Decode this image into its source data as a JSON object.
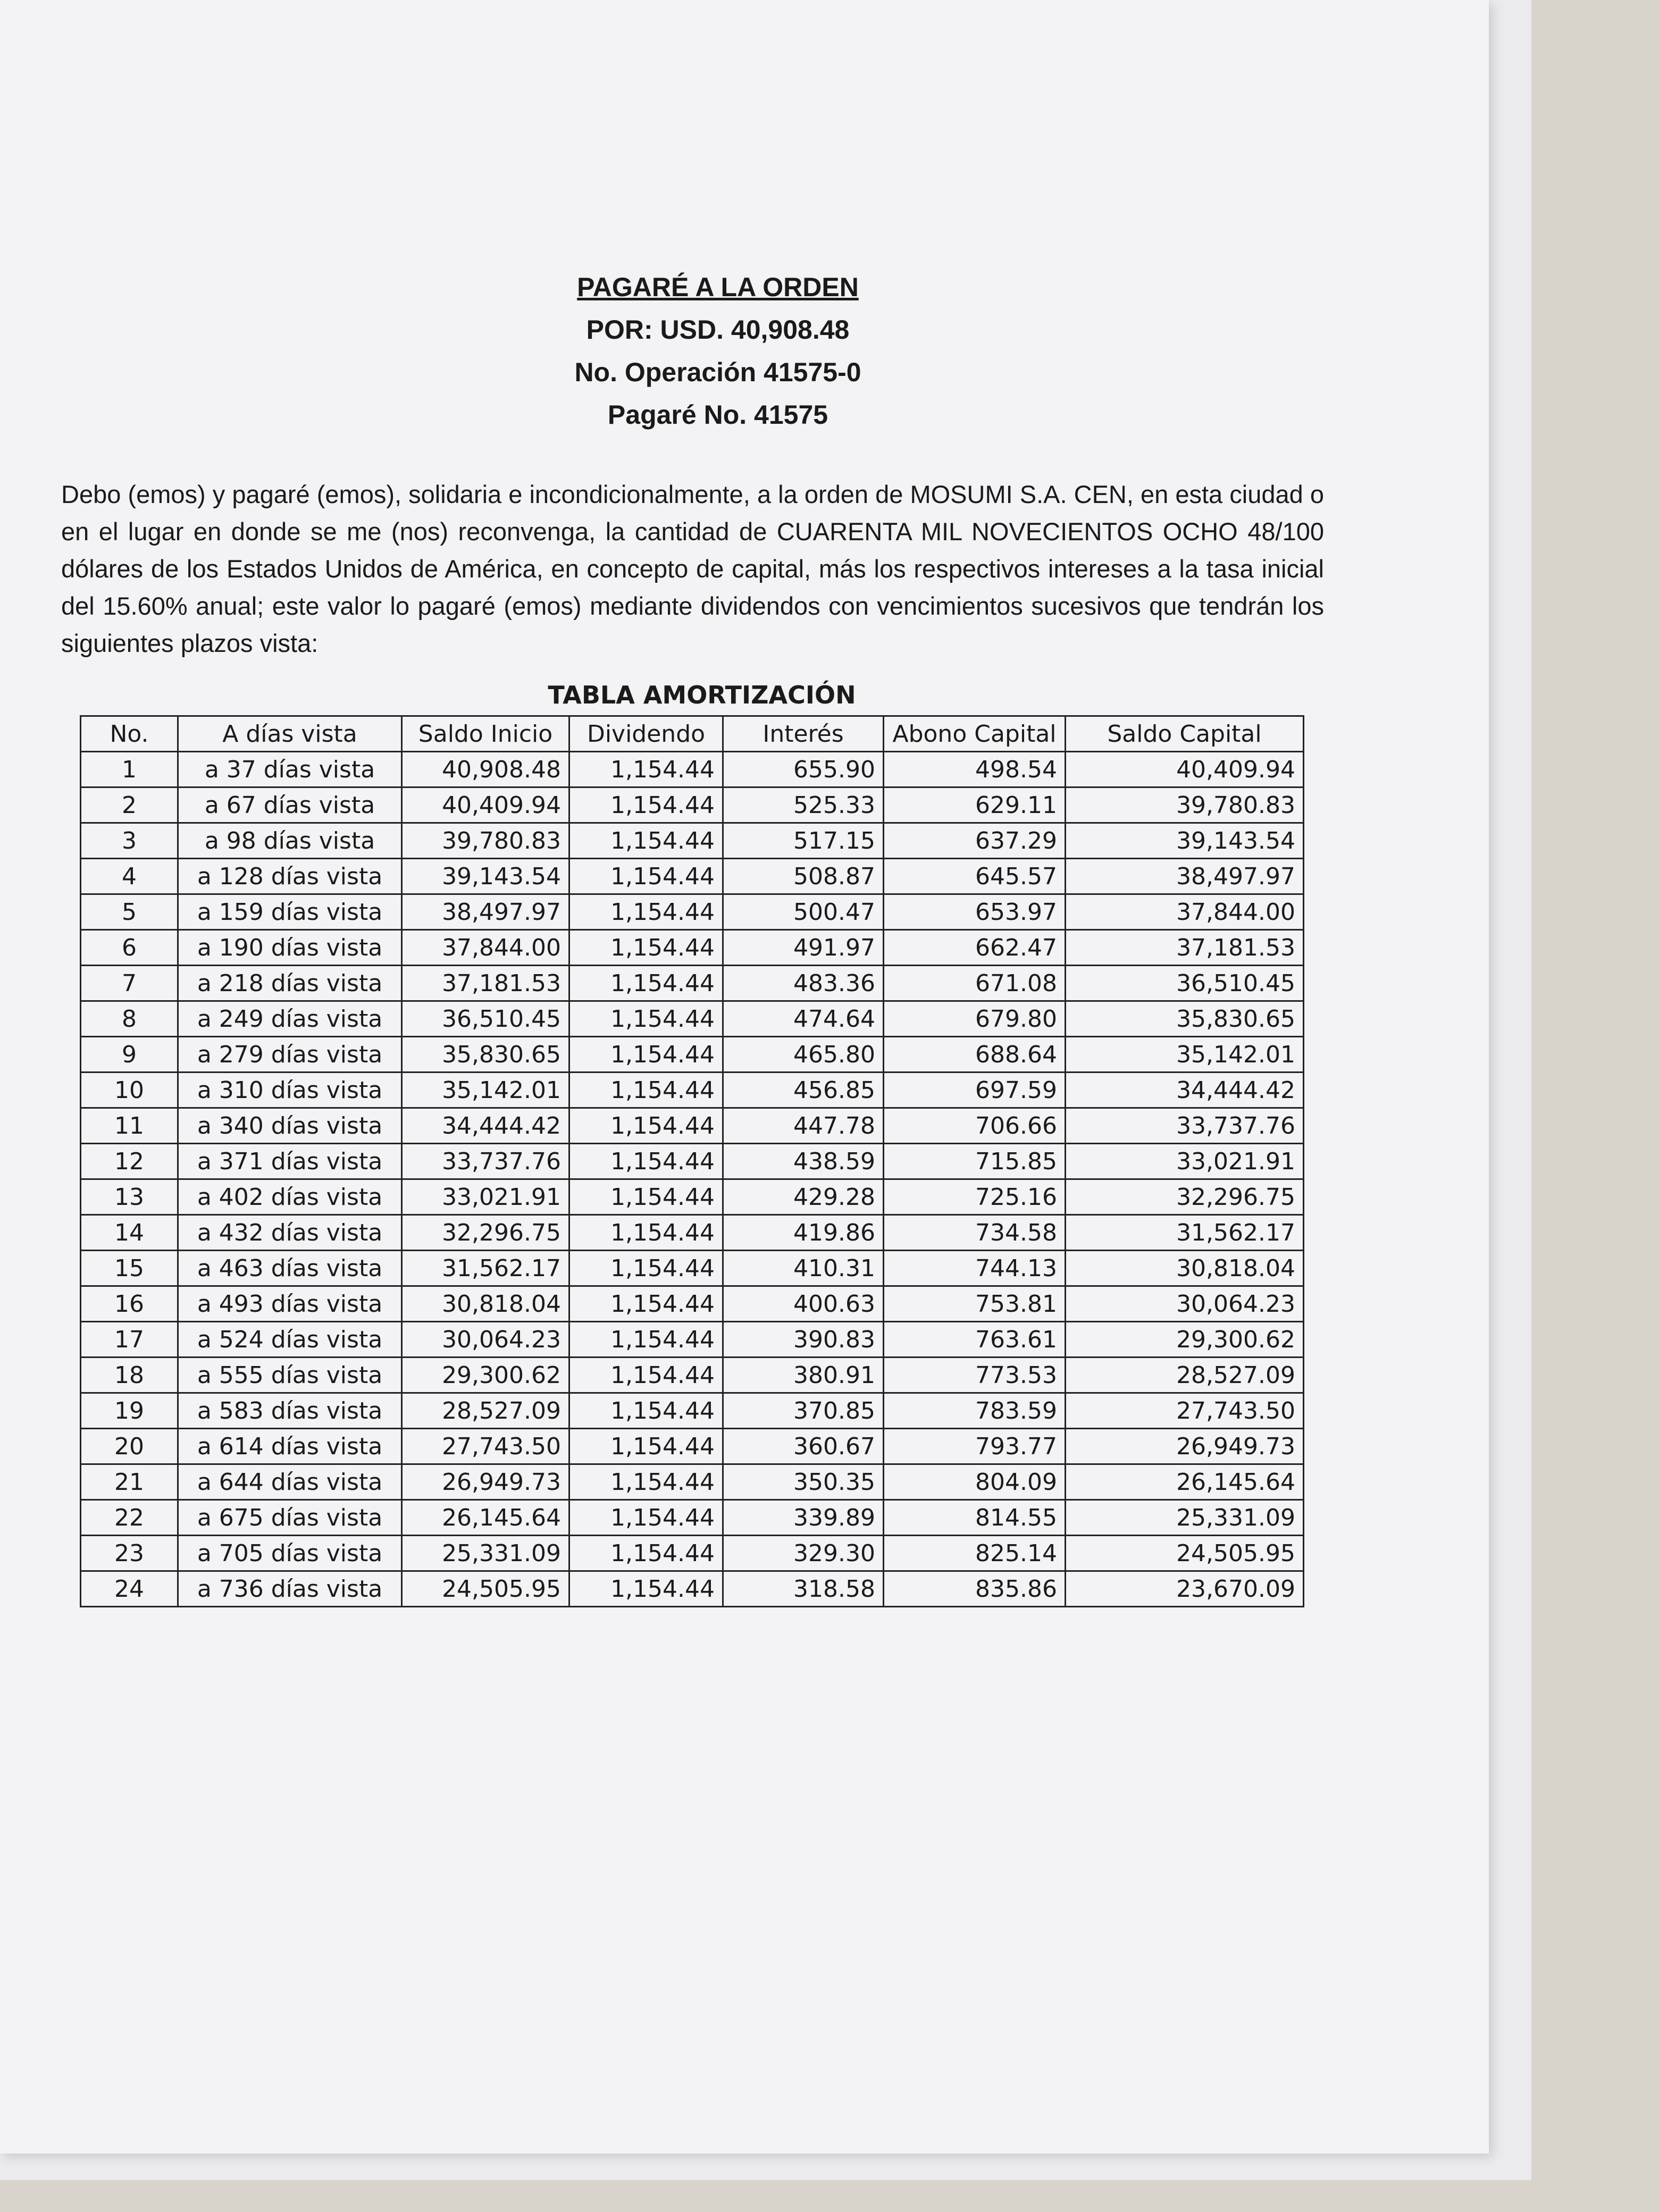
{
  "header": {
    "title": "PAGARÉ A LA ORDEN",
    "amount": "POR: USD. 40,908.48",
    "operation": "No. Operación 41575-0",
    "note_number": "Pagaré No. 41575"
  },
  "body": {
    "paragraph": "Debo (emos) y pagaré (emos), solidaria e incondicionalmente, a la orden de MOSUMI S.A. CEN, en esta ciudad o en el lugar en donde se me (nos) reconvenga, la cantidad de CUARENTA MIL NOVECIENTOS OCHO 48/100 dólares de los Estados Unidos de América, en concepto de capital, más los respectivos intereses a la tasa inicial del 15.60% anual; este valor lo pagaré (emos) mediante dividendos con vencimientos sucesivos que tendrán los siguientes plazos vista:"
  },
  "table": {
    "title": "TABLA AMORTIZACIÓN",
    "columns": [
      "No.",
      "A días vista",
      "Saldo Inicio",
      "Dividendo",
      "Interés",
      "Abono Capital",
      "Saldo Capital"
    ],
    "rows": [
      [
        "1",
        "a 37 días vista",
        "40,908.48",
        "1,154.44",
        "655.90",
        "498.54",
        "40,409.94"
      ],
      [
        "2",
        "a 67 días vista",
        "40,409.94",
        "1,154.44",
        "525.33",
        "629.11",
        "39,780.83"
      ],
      [
        "3",
        "a 98 días vista",
        "39,780.83",
        "1,154.44",
        "517.15",
        "637.29",
        "39,143.54"
      ],
      [
        "4",
        "a 128 días vista",
        "39,143.54",
        "1,154.44",
        "508.87",
        "645.57",
        "38,497.97"
      ],
      [
        "5",
        "a 159 días vista",
        "38,497.97",
        "1,154.44",
        "500.47",
        "653.97",
        "37,844.00"
      ],
      [
        "6",
        "a 190 días vista",
        "37,844.00",
        "1,154.44",
        "491.97",
        "662.47",
        "37,181.53"
      ],
      [
        "7",
        "a 218 días vista",
        "37,181.53",
        "1,154.44",
        "483.36",
        "671.08",
        "36,510.45"
      ],
      [
        "8",
        "a 249 días vista",
        "36,510.45",
        "1,154.44",
        "474.64",
        "679.80",
        "35,830.65"
      ],
      [
        "9",
        "a 279 días vista",
        "35,830.65",
        "1,154.44",
        "465.80",
        "688.64",
        "35,142.01"
      ],
      [
        "10",
        "a 310 días vista",
        "35,142.01",
        "1,154.44",
        "456.85",
        "697.59",
        "34,444.42"
      ],
      [
        "11",
        "a 340 días vista",
        "34,444.42",
        "1,154.44",
        "447.78",
        "706.66",
        "33,737.76"
      ],
      [
        "12",
        "a 371 días vista",
        "33,737.76",
        "1,154.44",
        "438.59",
        "715.85",
        "33,021.91"
      ],
      [
        "13",
        "a 402 días vista",
        "33,021.91",
        "1,154.44",
        "429.28",
        "725.16",
        "32,296.75"
      ],
      [
        "14",
        "a 432 días vista",
        "32,296.75",
        "1,154.44",
        "419.86",
        "734.58",
        "31,562.17"
      ],
      [
        "15",
        "a 463 días vista",
        "31,562.17",
        "1,154.44",
        "410.31",
        "744.13",
        "30,818.04"
      ],
      [
        "16",
        "a 493 días vista",
        "30,818.04",
        "1,154.44",
        "400.63",
        "753.81",
        "30,064.23"
      ],
      [
        "17",
        "a 524 días vista",
        "30,064.23",
        "1,154.44",
        "390.83",
        "763.61",
        "29,300.62"
      ],
      [
        "18",
        "a 555 días vista",
        "29,300.62",
        "1,154.44",
        "380.91",
        "773.53",
        "28,527.09"
      ],
      [
        "19",
        "a 583 días vista",
        "28,527.09",
        "1,154.44",
        "370.85",
        "783.59",
        "27,743.50"
      ],
      [
        "20",
        "a 614 días vista",
        "27,743.50",
        "1,154.44",
        "360.67",
        "793.77",
        "26,949.73"
      ],
      [
        "21",
        "a 644 días vista",
        "26,949.73",
        "1,154.44",
        "350.35",
        "804.09",
        "26,145.64"
      ],
      [
        "22",
        "a 675 días vista",
        "26,145.64",
        "1,154.44",
        "339.89",
        "814.55",
        "25,331.09"
      ],
      [
        "23",
        "a 705 días vista",
        "25,331.09",
        "1,154.44",
        "329.30",
        "825.14",
        "24,505.95"
      ],
      [
        "24",
        "a 736 días vista",
        "24,505.95",
        "1,154.44",
        "318.58",
        "835.86",
        "23,670.09"
      ]
    ]
  }
}
